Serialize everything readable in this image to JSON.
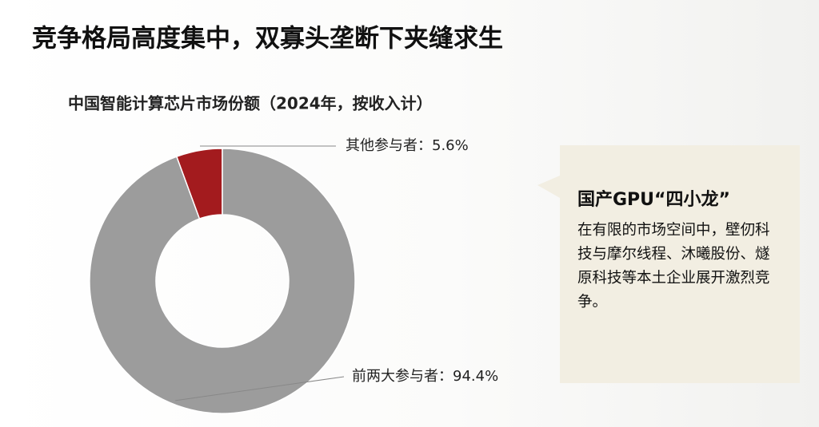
{
  "chart_data": {
    "type": "donut",
    "heading": "竞争格局高度集中，双寡头垄断下夹缝求生",
    "title": "中国智能计算芯片市场份额（2024年，按收入计）",
    "values": [
      5.6,
      94.4
    ],
    "value_labels": [
      "其他参与者：5.6%",
      "前两大参与者：94.4%"
    ],
    "colors": [
      "#a31b1e",
      "#9c9c9c"
    ],
    "annotation": {
      "title": "国产GPU“四小龙”",
      "text": "在有限的市场空间中，壁仞科技与摩尔线程、沐曦股份、燧原科技等本土企业展开激烈竞争。"
    }
  }
}
